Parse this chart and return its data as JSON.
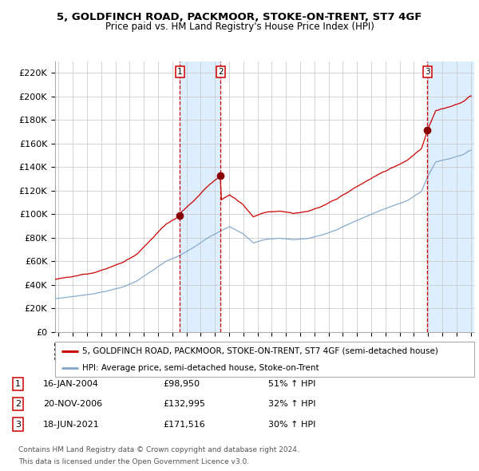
{
  "title": "5, GOLDFINCH ROAD, PACKMOOR, STOKE-ON-TRENT, ST7 4GF",
  "subtitle": "Price paid vs. HM Land Registry's House Price Index (HPI)",
  "legend_line1": "5, GOLDFINCH ROAD, PACKMOOR, STOKE-ON-TRENT, ST7 4GF (semi-detached house)",
  "legend_line2": "HPI: Average price, semi-detached house, Stoke-on-Trent",
  "footer1": "Contains HM Land Registry data © Crown copyright and database right 2024.",
  "footer2": "This data is licensed under the Open Government Licence v3.0.",
  "transactions": [
    {
      "num": 1,
      "date": "16-JAN-2004",
      "price": "£98,950",
      "change": "51% ↑ HPI",
      "x_year": 2004.04
    },
    {
      "num": 2,
      "date": "20-NOV-2006",
      "price": "£132,995",
      "change": "32% ↑ HPI",
      "x_year": 2006.89
    },
    {
      "num": 3,
      "date": "18-JUN-2021",
      "price": "£171,516",
      "change": "30% ↑ HPI",
      "x_year": 2021.46
    }
  ],
  "red_color": "#cc0000",
  "blue_color": "#88aacc",
  "vline_color": "#cc0000",
  "shade_color": "#ddeeff",
  "bg_color": "#ffffff",
  "grid_color": "#cccccc",
  "ylim": [
    0,
    230000
  ],
  "xlim_start": 1995.25,
  "xlim_end": 2024.75,
  "yticks": [
    0,
    20000,
    40000,
    60000,
    80000,
    100000,
    120000,
    140000,
    160000,
    180000,
    200000,
    220000
  ]
}
